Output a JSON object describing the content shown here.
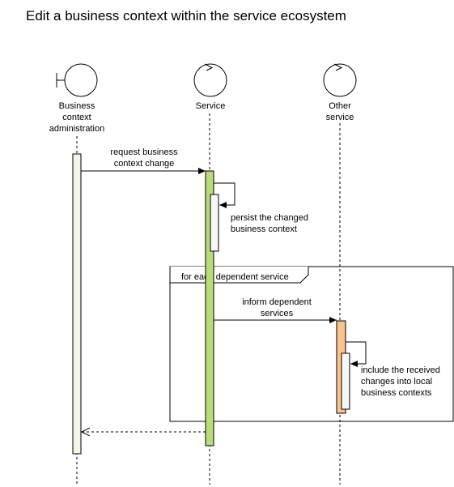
{
  "title": "Edit a business context within the service ecosystem",
  "participants": [
    {
      "id": "admin",
      "type": "boundary",
      "label_lines": [
        "Business",
        "context",
        "administration"
      ]
    },
    {
      "id": "service",
      "type": "control",
      "label_lines": [
        "Service"
      ]
    },
    {
      "id": "other",
      "type": "control",
      "label_lines": [
        "Other",
        "service"
      ]
    }
  ],
  "messages": [
    {
      "id": "msg-request",
      "from": "admin",
      "to": "service",
      "style": "sync",
      "label_lines": [
        "request business",
        "context change"
      ]
    },
    {
      "id": "msg-persist",
      "from": "service",
      "to": "service",
      "style": "self",
      "label_lines": [
        "persist the changed",
        "business context"
      ]
    },
    {
      "id": "msg-inform",
      "from": "service",
      "to": "other",
      "style": "sync",
      "label_lines": [
        "inform dependent",
        "services"
      ]
    },
    {
      "id": "msg-include",
      "from": "other",
      "to": "other",
      "style": "self",
      "label_lines": [
        "include the received",
        "changes into local",
        "business contexts"
      ]
    },
    {
      "id": "msg-return",
      "from": "service",
      "to": "admin",
      "style": "return",
      "label_lines": []
    }
  ],
  "fragment": {
    "label": "for each dependent service"
  },
  "colors": {
    "admin_activation": "#f5f5e8",
    "service_activation": "#b8dc7a",
    "other_activation": "#f9c28f",
    "nested_activation": "#f8f8f8"
  }
}
